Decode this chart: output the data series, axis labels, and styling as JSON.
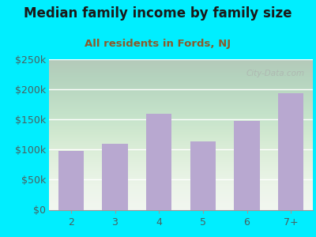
{
  "title": "Median family income by family size",
  "subtitle": "All residents in Fords, NJ",
  "categories": [
    "2",
    "3",
    "4",
    "5",
    "6",
    "7+"
  ],
  "values": [
    98000,
    110000,
    160000,
    113000,
    148000,
    193000
  ],
  "bar_color": "#b8a8d0",
  "background_outer": "#00eeff",
  "background_chart_top": "#e8f0e8",
  "background_chart_bottom": "#f5f8f0",
  "title_color": "#1a1a1a",
  "subtitle_color": "#8b5a2b",
  "axis_label_color": "#4a6060",
  "ylim": [
    0,
    250000
  ],
  "yticks": [
    0,
    50000,
    100000,
    150000,
    200000,
    250000
  ],
  "ytick_labels": [
    "$0",
    "$50k",
    "$100k",
    "$150k",
    "$200k",
    "$250k"
  ],
  "title_fontsize": 12,
  "subtitle_fontsize": 9.5,
  "watermark": "City-Data.com"
}
